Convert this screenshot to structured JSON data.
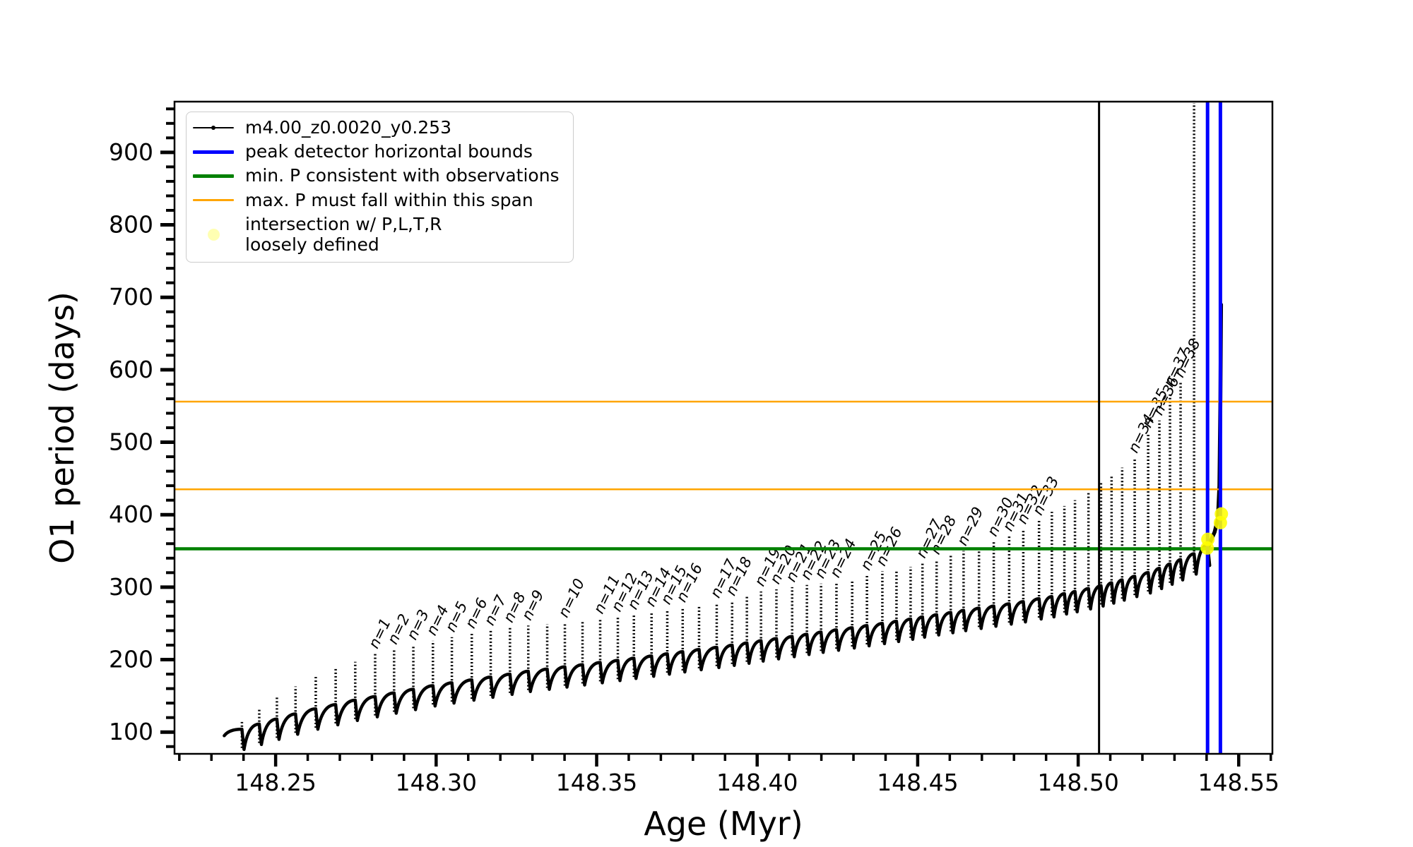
{
  "page": {
    "background": "#ffffff"
  },
  "legend": {
    "entries": [
      {
        "label": "m4.00_z0.0020_y0.253",
        "kind": "line-dot",
        "color": "#000000",
        "lw": 2
      },
      {
        "label": "peak detector horizontal bounds",
        "kind": "line",
        "color": "#0000FF",
        "lw": 5
      },
      {
        "label": "min. P consistent with observations",
        "kind": "line",
        "color": "#008000",
        "lw": 5
      },
      {
        "label": "max. P must fall within this span",
        "kind": "line",
        "color": "#FFA500",
        "lw": 2.5
      },
      {
        "label": "intersection w/ P,L,T,R\nloosely defined",
        "kind": "dot",
        "color": "#FFFF00",
        "lw": 0
      }
    ]
  },
  "chart_data": {
    "type": "line",
    "title": "",
    "xlabel": "Age (Myr)",
    "ylabel": "O1 period (days)",
    "xlim": [
      148.2185,
      148.5605
    ],
    "ylim": [
      70,
      970
    ],
    "grid": false,
    "legend_position": "upper left",
    "xticks": [
      148.25,
      148.3,
      148.35,
      148.4,
      148.45,
      148.5,
      148.55
    ],
    "xtick_labels": [
      "148.25",
      "148.30",
      "148.35",
      "148.40",
      "148.45",
      "148.50",
      "148.55"
    ],
    "xminor_step": 0.01,
    "yticks": [
      100,
      200,
      300,
      400,
      500,
      600,
      700,
      800,
      900
    ],
    "ytick_labels": [
      "100",
      "200",
      "300",
      "400",
      "500",
      "600",
      "700",
      "800",
      "900"
    ],
    "yminor_step": 20,
    "series_label": "m4.00_z0.0020_y0.253",
    "series_color": "#000000",
    "track_start": {
      "age": 148.234,
      "period": 95
    },
    "pulses_format": [
      "age_Myr",
      "spike_peak_period_days",
      "baseline_period_days",
      "label"
    ],
    "pulses": [
      [
        148.2395,
        114,
        88,
        null
      ],
      [
        148.2449,
        133,
        95,
        null
      ],
      [
        148.2504,
        150,
        102,
        null
      ],
      [
        148.2562,
        163,
        109,
        null
      ],
      [
        148.2625,
        176,
        116,
        null
      ],
      [
        148.2687,
        187,
        122,
        null
      ],
      [
        148.2748,
        197,
        128,
        null
      ],
      [
        148.281,
        208,
        133,
        "n=1"
      ],
      [
        148.2869,
        214,
        138,
        "n=2"
      ],
      [
        148.2929,
        220,
        143,
        "n=3"
      ],
      [
        148.299,
        226,
        148,
        "n=4"
      ],
      [
        148.3049,
        231,
        152,
        "n=5"
      ],
      [
        148.3111,
        236,
        156,
        "n=6"
      ],
      [
        148.317,
        240,
        160,
        "n=7"
      ],
      [
        148.323,
        244,
        164,
        "n=8"
      ],
      [
        148.3287,
        247,
        168,
        "n=9"
      ],
      [
        148.3346,
        249,
        171,
        null
      ],
      [
        148.3401,
        251,
        174,
        "n=10"
      ],
      [
        148.3456,
        253,
        177,
        null
      ],
      [
        148.3511,
        256,
        180,
        "n=11"
      ],
      [
        148.3566,
        259,
        183,
        "n=12"
      ],
      [
        148.3616,
        262,
        186,
        "n=13"
      ],
      [
        148.3671,
        266,
        189,
        "n=14"
      ],
      [
        148.372,
        269,
        192,
        "n=15"
      ],
      [
        148.3768,
        272,
        195,
        "n=16"
      ],
      [
        148.3819,
        274,
        198,
        null
      ],
      [
        148.3874,
        278,
        201,
        "n=17"
      ],
      [
        148.3922,
        281,
        204,
        "n=18"
      ],
      [
        148.3968,
        288,
        207,
        null
      ],
      [
        148.4012,
        294,
        210,
        "n=19"
      ],
      [
        148.406,
        297,
        213,
        "n=20"
      ],
      [
        148.4109,
        300,
        216,
        "n=21"
      ],
      [
        148.4155,
        303,
        219,
        "n=22"
      ],
      [
        148.4199,
        305,
        222,
        "n=23"
      ],
      [
        148.4247,
        306,
        225,
        "n=24"
      ],
      [
        148.4296,
        310,
        228,
        null
      ],
      [
        148.4342,
        316,
        231,
        "n=25"
      ],
      [
        148.439,
        322,
        234,
        "n=26"
      ],
      [
        148.4434,
        324,
        237,
        null
      ],
      [
        148.4478,
        328,
        240,
        null
      ],
      [
        148.4515,
        333,
        243,
        "n=27"
      ],
      [
        148.4559,
        338,
        246,
        "n=28"
      ],
      [
        148.4603,
        345,
        249,
        null
      ],
      [
        148.4643,
        350,
        252,
        "n=29"
      ],
      [
        148.4691,
        357,
        255,
        null
      ],
      [
        148.4737,
        363,
        258,
        "n=30"
      ],
      [
        148.4785,
        370,
        261,
        "n=31"
      ],
      [
        148.4829,
        380,
        264,
        "n=32"
      ],
      [
        148.4878,
        392,
        268,
        "n=33"
      ],
      [
        148.4918,
        404,
        271,
        null
      ],
      [
        148.4957,
        412,
        275,
        null
      ],
      [
        148.499,
        420,
        278,
        null
      ],
      [
        148.5032,
        430,
        282,
        null
      ],
      [
        148.5071,
        444,
        286,
        null
      ],
      [
        148.5104,
        454,
        290,
        null
      ],
      [
        148.5137,
        465,
        294,
        null
      ],
      [
        148.5176,
        478,
        299,
        "n=34"
      ],
      [
        148.5218,
        513,
        304,
        "n=35"
      ],
      [
        148.5253,
        530,
        310,
        "n=36"
      ],
      [
        148.5286,
        569,
        316,
        "n=37"
      ],
      [
        148.5319,
        582,
        322,
        "n=38"
      ],
      [
        148.5361,
        968,
        330,
        null
      ],
      [
        148.5403,
        575,
        342,
        null
      ]
    ],
    "final_rise": [
      [
        148.5403,
        352
      ],
      [
        148.5412,
        363
      ],
      [
        148.5425,
        376
      ],
      [
        148.5435,
        394
      ],
      [
        148.544,
        440
      ],
      [
        148.5443,
        560
      ],
      [
        148.5445,
        690
      ]
    ],
    "hlines": [
      {
        "y": 556,
        "color": "#FFA500",
        "lw": 2.5,
        "name": "max-P-span-upper"
      },
      {
        "y": 435,
        "color": "#FFA500",
        "lw": 2.5,
        "name": "max-P-span-lower"
      },
      {
        "y": 353,
        "color": "#008000",
        "lw": 4.5,
        "name": "min-P-consistent"
      }
    ],
    "vlines": [
      {
        "x": 148.5065,
        "color": "#000000",
        "lw": 3,
        "name": "black-marker-line"
      },
      {
        "x": 148.5403,
        "color": "#0000FF",
        "lw": 5,
        "name": "peak-detector-left-bound"
      },
      {
        "x": 148.5443,
        "color": "#0000FF",
        "lw": 5,
        "name": "peak-detector-right-bound"
      }
    ],
    "intersection_points": {
      "color": "#FFFF00",
      "points": [
        [
          148.5402,
          354
        ],
        [
          148.5404,
          366
        ],
        [
          148.5443,
          389
        ],
        [
          148.5446,
          401
        ]
      ]
    }
  }
}
